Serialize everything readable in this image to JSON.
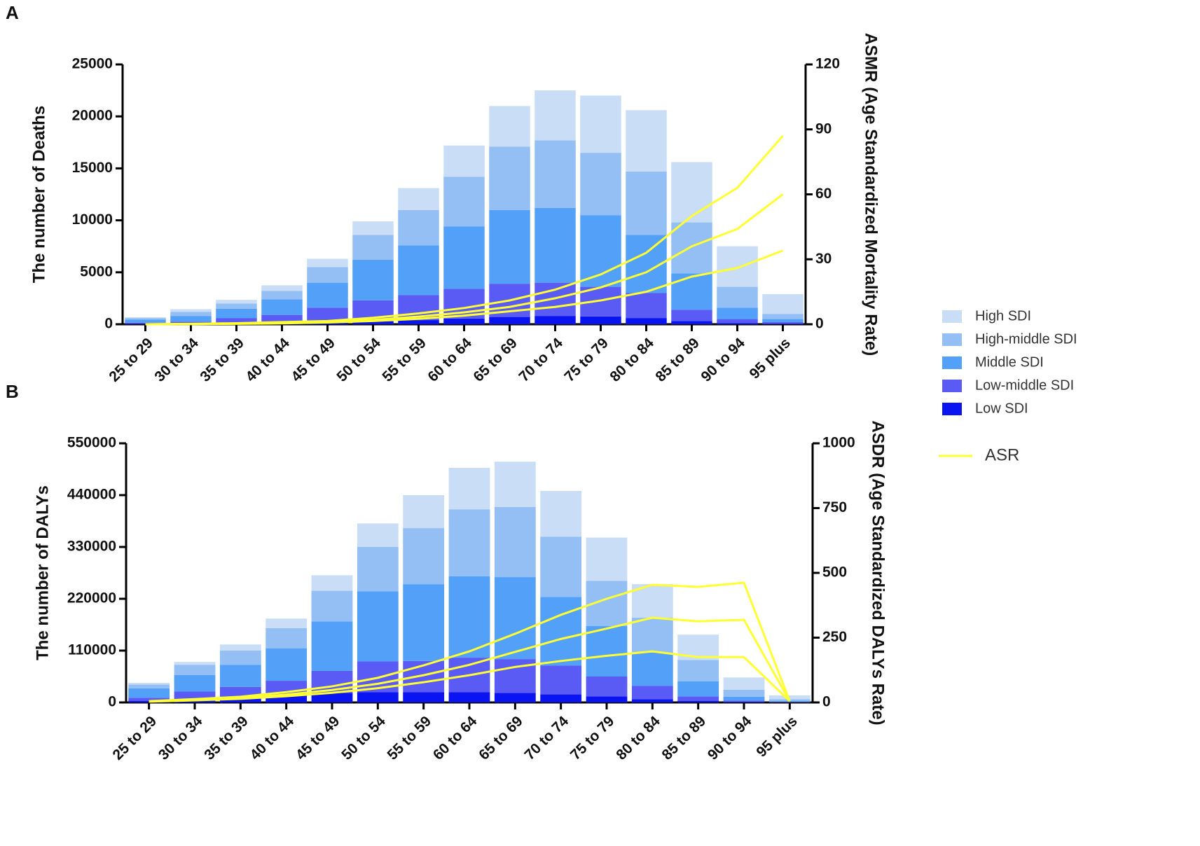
{
  "chart_data": [
    {
      "type": "bar",
      "panel": "A",
      "stacked": true,
      "ylabel": "The number of Deaths",
      "y2label": "ASMR (Age Standardized Mortality Rate)",
      "categories": [
        "25 to 29",
        "30 to 34",
        "35 to 39",
        "40 to 44",
        "45 to 49",
        "50 to 54",
        "55 to 59",
        "60 to 64",
        "65 to 69",
        "70 to 74",
        "75 to 79",
        "80 to 84",
        "85 to 89",
        "90 to 94",
        "95 plus"
      ],
      "ylim": [
        0,
        25000
      ],
      "yticks": [
        0,
        5000,
        10000,
        15000,
        20000,
        25000
      ],
      "y2lim": [
        0,
        120
      ],
      "y2ticks": [
        0,
        30,
        60,
        90,
        120
      ],
      "series": [
        {
          "name": "Low SDI",
          "color": "#0a14f0",
          "values": [
            50,
            60,
            80,
            100,
            200,
            300,
            400,
            550,
            700,
            800,
            750,
            600,
            300,
            100,
            50
          ]
        },
        {
          "name": "Low-middle SDI",
          "color": "#5a5af5",
          "values": [
            100,
            190,
            520,
            800,
            1400,
            2000,
            2400,
            2850,
            3200,
            3200,
            2850,
            2400,
            1100,
            400,
            150
          ]
        },
        {
          "name": "Middle SDI",
          "color": "#52a0f7",
          "values": [
            300,
            550,
            900,
            1500,
            2400,
            3900,
            4800,
            6000,
            7100,
            7200,
            6900,
            5600,
            3500,
            1100,
            300
          ]
        },
        {
          "name": "High-middle SDI",
          "color": "#94bff5",
          "values": [
            150,
            400,
            500,
            800,
            1500,
            2400,
            3400,
            4800,
            6100,
            6500,
            6000,
            6100,
            4900,
            2000,
            500
          ]
        },
        {
          "name": "High SDI",
          "color": "#c9ddf7",
          "values": [
            70,
            250,
            350,
            550,
            800,
            1300,
            2100,
            3000,
            3900,
            4800,
            5500,
            5900,
            5800,
            3900,
            1900
          ]
        },
        {
          "type": "line",
          "axis": "y2",
          "name": "ASR",
          "color": "#ffff33",
          "values": [
            0,
            0.2,
            0.5,
            1,
            1.5,
            3,
            5,
            7.5,
            11,
            16,
            23,
            33,
            50,
            63,
            87
          ]
        },
        {
          "type": "line",
          "axis": "y2",
          "color": "#ffff33",
          "values": [
            0,
            0.1,
            0.3,
            0.6,
            1,
            2,
            3.5,
            5.5,
            8,
            12,
            17,
            24,
            36,
            44,
            60
          ]
        },
        {
          "type": "line",
          "axis": "y2",
          "color": "#ffff33",
          "values": [
            0,
            0.1,
            0.2,
            0.4,
            0.8,
            1.5,
            2.5,
            4,
            6,
            8,
            11,
            15,
            22,
            26,
            34
          ]
        }
      ]
    },
    {
      "type": "bar",
      "panel": "B",
      "stacked": true,
      "ylabel": "The number of DALYs",
      "y2label": "ASDR (Age Standardized DALYs Rate)",
      "categories": [
        "25 to 29",
        "30 to 34",
        "35 to 39",
        "40 to 44",
        "45 to 49",
        "50 to 54",
        "55 to 59",
        "60 to 64",
        "65 to 69",
        "70 to 74",
        "75 to 79",
        "80 to 84",
        "85 to 89",
        "90 to 94",
        "95 plus"
      ],
      "ylim": [
        0,
        550000
      ],
      "yticks": [
        0,
        110000,
        220000,
        330000,
        440000,
        550000
      ],
      "y2lim": [
        0,
        1000
      ],
      "y2ticks": [
        0,
        250,
        500,
        750,
        1000
      ],
      "series": [
        {
          "color": "#0a14f0",
          "values": [
            3000,
            8000,
            12000,
            15000,
            20000,
            22000,
            22000,
            22000,
            20000,
            17000,
            13000,
            7000,
            3000,
            1000,
            300
          ]
        },
        {
          "color": "#5a5af5",
          "values": [
            7000,
            15000,
            21000,
            31000,
            47000,
            65000,
            66000,
            73000,
            72000,
            61000,
            42000,
            28000,
            10000,
            3000,
            700
          ]
        },
        {
          "color": "#52a0f7",
          "values": [
            20000,
            35000,
            47000,
            69000,
            105000,
            149000,
            163000,
            173000,
            174000,
            146000,
            107000,
            71000,
            32000,
            8000,
            2000
          ]
        },
        {
          "color": "#94bff5",
          "values": [
            8000,
            22000,
            30000,
            43000,
            65000,
            94000,
            119000,
            142000,
            149000,
            128000,
            96000,
            74000,
            45000,
            15000,
            4000
          ]
        },
        {
          "color": "#c9ddf7",
          "values": [
            3600,
            6000,
            13000,
            20000,
            33000,
            50000,
            70000,
            88000,
            96000,
            97000,
            92000,
            71000,
            54000,
            26000,
            8000
          ]
        },
        {
          "type": "line",
          "axis": "y2",
          "color": "#ffff33",
          "values": [
            5,
            13,
            22,
            40,
            62,
            95,
            143,
            197,
            265,
            338,
            400,
            454,
            446,
            462,
            5
          ]
        },
        {
          "type": "line",
          "axis": "y2",
          "color": "#ffff33",
          "values": [
            4,
            10,
            17,
            30,
            48,
            72,
            105,
            145,
            195,
            245,
            285,
            327,
            313,
            319,
            5
          ]
        },
        {
          "type": "line",
          "axis": "y2",
          "color": "#ffff33",
          "values": [
            3,
            8,
            14,
            24,
            37,
            55,
            78,
            105,
            137,
            160,
            180,
            197,
            175,
            175,
            5
          ]
        }
      ]
    }
  ]
}
